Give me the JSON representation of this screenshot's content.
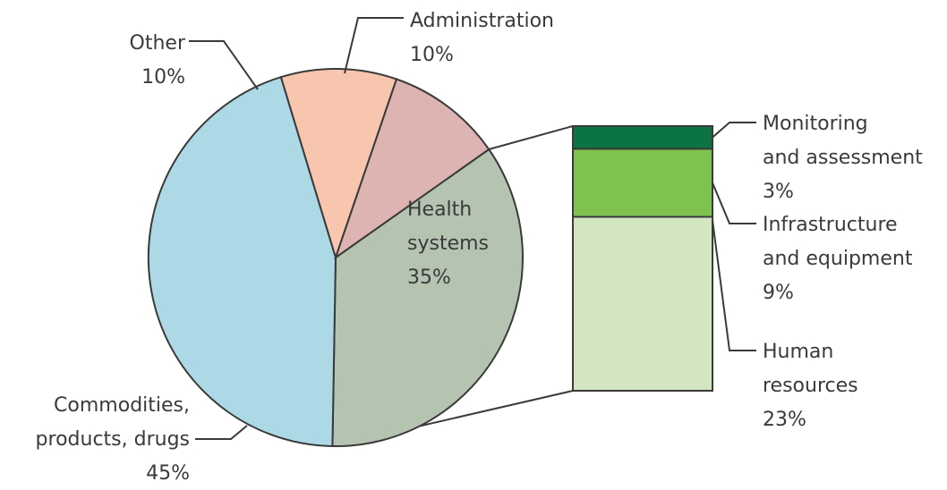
{
  "chart_data": {
    "type": "pie",
    "slices": [
      {
        "label": "Health systems",
        "label_lines": [
          "Health",
          "systems"
        ],
        "value": 35,
        "value_text": "35%",
        "color": "#b5c4b1"
      },
      {
        "label": "Commodities, products, drugs",
        "label_lines": [
          "Commodities,",
          "products, drugs"
        ],
        "value": 45,
        "value_text": "45%",
        "color": "#add8e6"
      },
      {
        "label": "Other",
        "label_lines": [
          "Other"
        ],
        "value": 10,
        "value_text": "10%",
        "color": "#f8c5ae"
      },
      {
        "label": "Administration",
        "label_lines": [
          "Administration"
        ],
        "value": 10,
        "value_text": "10%",
        "color": "#deb4b3"
      }
    ],
    "breakdown": {
      "of": "Health systems",
      "total": 35,
      "type": "stacked-bar",
      "segments": [
        {
          "label": "Human resources",
          "label_lines": [
            "Human",
            "resources"
          ],
          "value": 23,
          "value_text": "23%",
          "color": "#d3e6c2"
        },
        {
          "label": "Infrastructure and equipment",
          "label_lines": [
            "Infrastructure",
            "and equipment"
          ],
          "value": 9,
          "value_text": "9%",
          "color": "#7ec350"
        },
        {
          "label": "Monitoring and assessment",
          "label_lines": [
            "Monitoring",
            "and assessment"
          ],
          "value": 3,
          "value_text": "3%",
          "color": "#0c7342"
        }
      ]
    }
  }
}
